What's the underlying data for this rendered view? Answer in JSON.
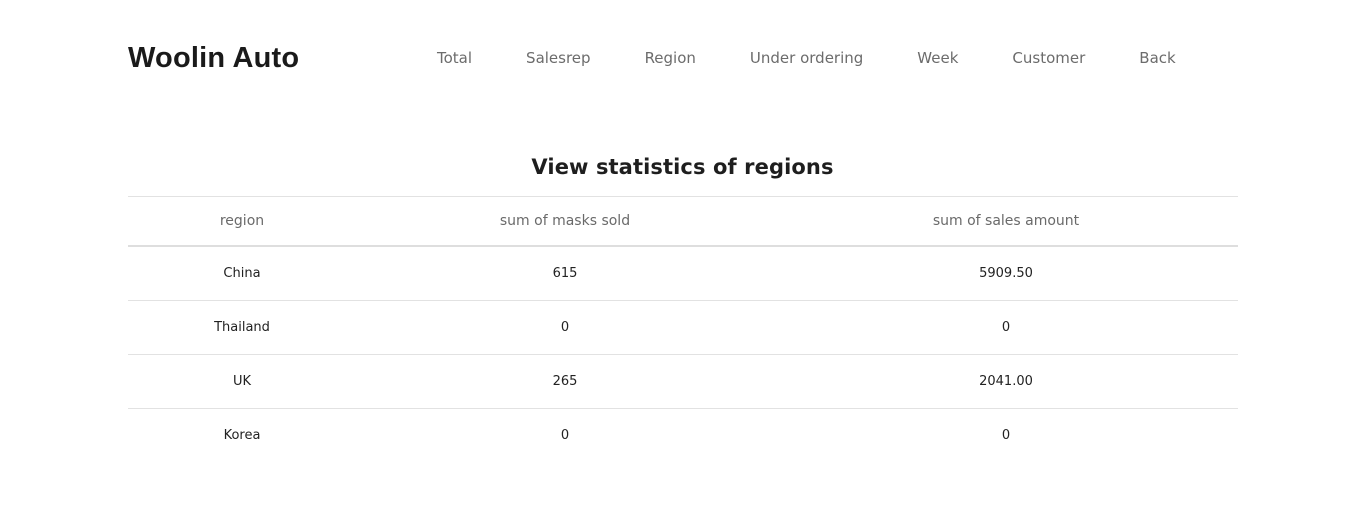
{
  "header": {
    "brand": "Woolin Auto",
    "nav": [
      {
        "label": "Total"
      },
      {
        "label": "Salesrep"
      },
      {
        "label": "Region"
      },
      {
        "label": "Under ordering"
      },
      {
        "label": "Week"
      },
      {
        "label": "Customer"
      },
      {
        "label": "Back"
      }
    ]
  },
  "main": {
    "title": "View statistics of regions",
    "table": {
      "columns": [
        "region",
        "sum of masks sold",
        "sum of sales amount"
      ],
      "rows": [
        [
          "China",
          "615",
          "5909.50"
        ],
        [
          "Thailand",
          "0",
          "0"
        ],
        [
          "UK",
          "265",
          "2041.00"
        ],
        [
          "Korea",
          "0",
          "0"
        ]
      ]
    }
  }
}
